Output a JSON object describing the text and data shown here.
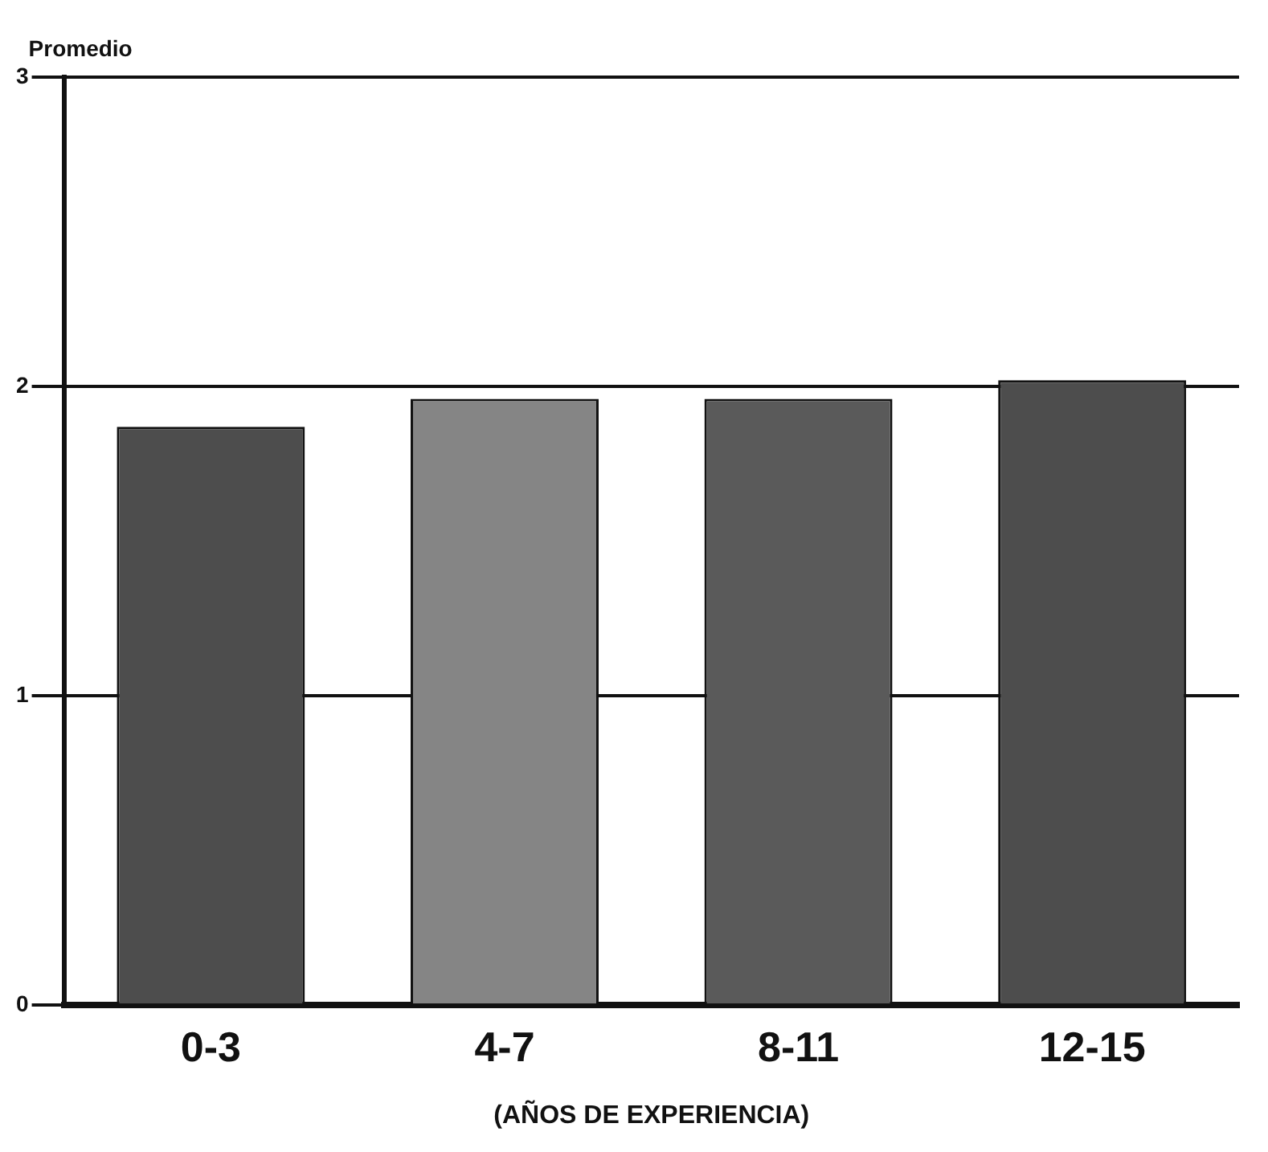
{
  "chart_data": {
    "type": "bar",
    "ylabel": "Promedio",
    "xlabel": "(AÑOS DE EXPERIENCIA)",
    "categories": [
      "0-3",
      "4-7",
      "8-11",
      "12-15"
    ],
    "values": [
      1.87,
      1.96,
      1.96,
      2.02
    ],
    "colors": [
      "#4d4d4d",
      "#858585",
      "#5a5a5a",
      "#4d4d4d"
    ],
    "ylim": [
      0,
      3
    ],
    "yticks": [
      0,
      1,
      2,
      3
    ],
    "grid": "y"
  }
}
